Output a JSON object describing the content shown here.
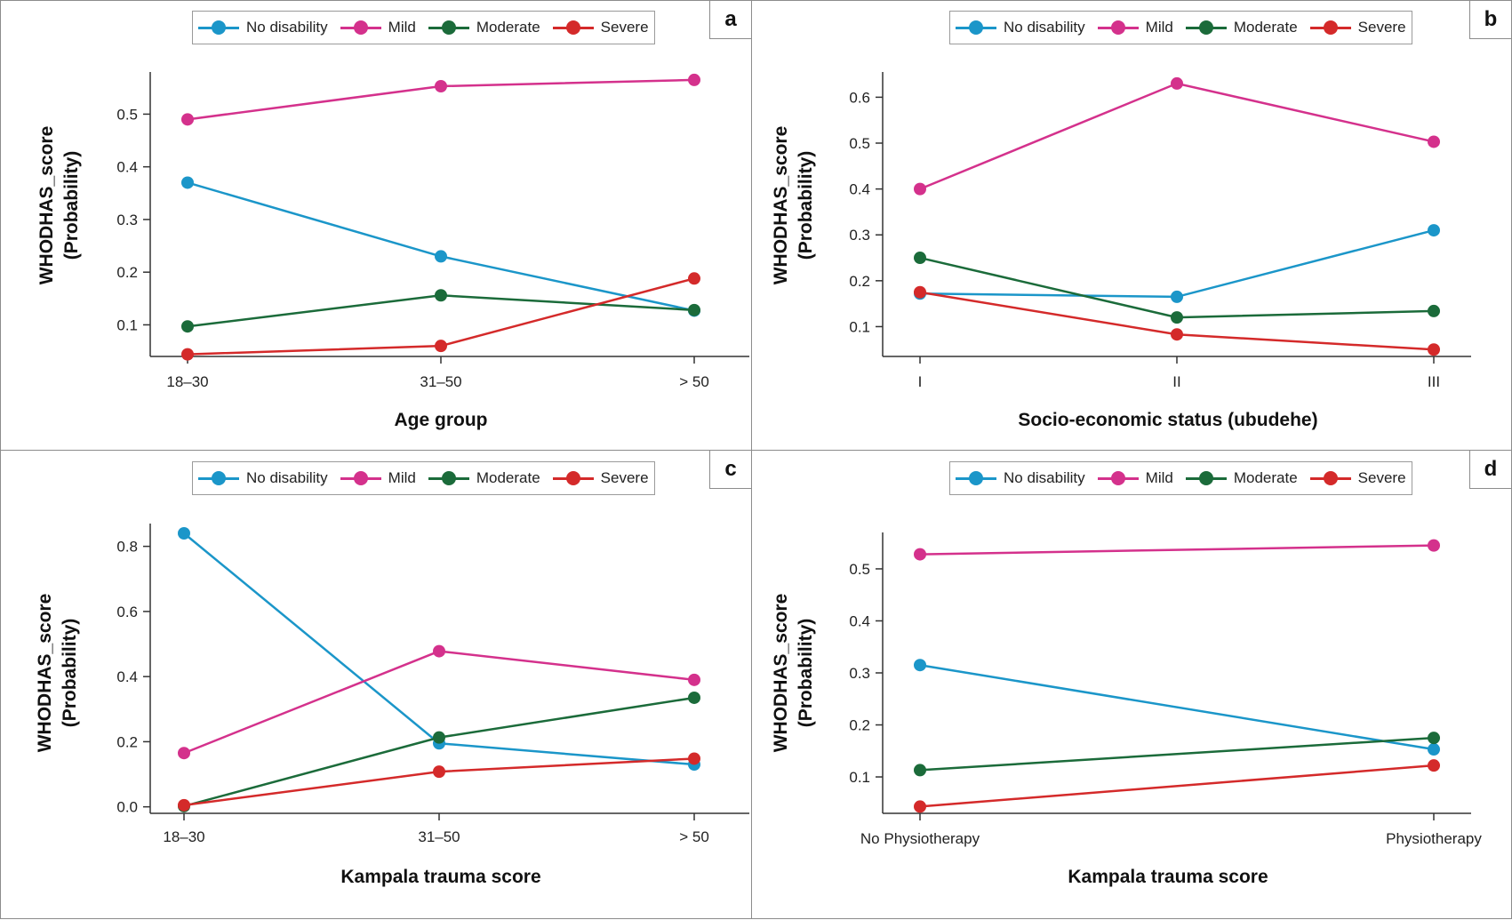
{
  "colors": {
    "no_disability": "#1b96c9",
    "mild": "#d4318c",
    "moderate": "#1b6b3a",
    "severe": "#d42a2a"
  },
  "legend": [
    "No disability",
    "Mild",
    "Moderate",
    "Severe"
  ],
  "chart_data": [
    {
      "panel": "a",
      "type": "line",
      "xlabel": "Age group",
      "ylabel_line1": "WHODHAS_score",
      "ylabel_line2": "(Probability)",
      "categories": [
        "18–30",
        "31–50",
        "> 50"
      ],
      "ylim": [
        0.04,
        0.58
      ],
      "yticks": [
        0.1,
        0.2,
        0.3,
        0.4,
        0.5
      ],
      "ytick_labels": [
        "0.1",
        "0.2",
        "0.3",
        "0.4",
        "0.5"
      ],
      "series": [
        {
          "name": "No disability",
          "values": [
            0.37,
            0.23,
            0.127
          ]
        },
        {
          "name": "Mild",
          "values": [
            0.49,
            0.553,
            0.565
          ]
        },
        {
          "name": "Moderate",
          "values": [
            0.097,
            0.156,
            0.128
          ]
        },
        {
          "name": "Severe",
          "values": [
            0.044,
            0.06,
            0.188
          ]
        }
      ]
    },
    {
      "panel": "b",
      "type": "line",
      "xlabel": "Socio-economic status (ubudehe)",
      "ylabel_line1": "WHODHAS_score",
      "ylabel_line2": "(Probability)",
      "categories": [
        "I",
        "II",
        "III"
      ],
      "ylim": [
        0.035,
        0.655
      ],
      "yticks": [
        0.1,
        0.2,
        0.3,
        0.4,
        0.5,
        0.6
      ],
      "ytick_labels": [
        "0.1",
        "0.2",
        "0.3",
        "0.4",
        "0.5",
        "0.6"
      ],
      "series": [
        {
          "name": "No disability",
          "values": [
            0.172,
            0.165,
            0.31
          ]
        },
        {
          "name": "Mild",
          "values": [
            0.4,
            0.63,
            0.503
          ]
        },
        {
          "name": "Moderate",
          "values": [
            0.25,
            0.12,
            0.134
          ]
        },
        {
          "name": "Severe",
          "values": [
            0.175,
            0.083,
            0.05
          ]
        }
      ]
    },
    {
      "panel": "c",
      "type": "line",
      "xlabel": "Kampala trauma score",
      "ylabel_line1": "WHODHAS_score",
      "ylabel_line2": "(Probability)",
      "categories": [
        "18–30",
        "31–50",
        "> 50"
      ],
      "ylim": [
        -0.02,
        0.87
      ],
      "yticks": [
        0.0,
        0.2,
        0.4,
        0.6,
        0.8
      ],
      "ytick_labels": [
        "0.0",
        "0.2",
        "0.4",
        "0.6",
        "0.8"
      ],
      "series": [
        {
          "name": "No disability",
          "values": [
            0.84,
            0.195,
            0.13
          ]
        },
        {
          "name": "Mild",
          "values": [
            0.165,
            0.478,
            0.39
          ]
        },
        {
          "name": "Moderate",
          "values": [
            0.002,
            0.213,
            0.335
          ]
        },
        {
          "name": "Severe",
          "values": [
            0.005,
            0.108,
            0.148
          ]
        }
      ]
    },
    {
      "panel": "d",
      "type": "line",
      "xlabel": "Kampala trauma score",
      "ylabel_line1": "WHODHAS_score",
      "ylabel_line2": "(Probability)",
      "categories": [
        "No Physiotherapy",
        "Physiotherapy"
      ],
      "ylim": [
        0.03,
        0.57
      ],
      "yticks": [
        0.1,
        0.2,
        0.3,
        0.4,
        0.5
      ],
      "ytick_labels": [
        "0.1",
        "0.2",
        "0.3",
        "0.4",
        "0.5"
      ],
      "series": [
        {
          "name": "No disability",
          "values": [
            0.315,
            0.153
          ]
        },
        {
          "name": "Mild",
          "values": [
            0.528,
            0.545
          ]
        },
        {
          "name": "Moderate",
          "values": [
            0.113,
            0.175
          ]
        },
        {
          "name": "Severe",
          "values": [
            0.043,
            0.122
          ]
        }
      ]
    }
  ]
}
